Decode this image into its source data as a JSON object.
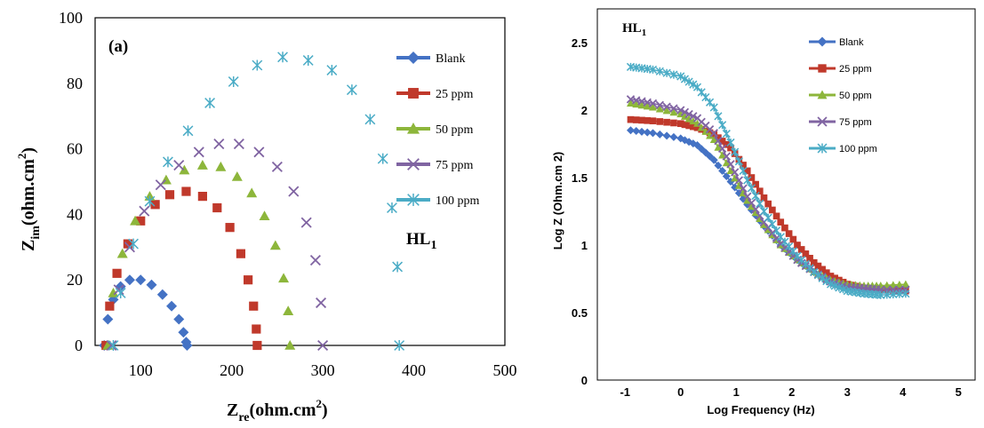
{
  "colors": {
    "blank": "#4472C4",
    "ppm25": "#C0392B",
    "ppm50": "#8DB63B",
    "ppm75": "#8064A2",
    "ppm100": "#4BACC6"
  },
  "chart_data": [
    {
      "type": "scatter",
      "panel_label": "(a)",
      "annotation": {
        "main": "HL",
        "sub": "1"
      },
      "xlabel": {
        "main": "Z",
        "sub": "re",
        "rest": "(ohm.cm",
        "sup": "2",
        "close": ")"
      },
      "ylabel": {
        "main": "Z",
        "sub": "im",
        "rest": "(ohm.cm",
        "sup": "2",
        "close": ")"
      },
      "xlim": [
        50,
        500
      ],
      "ylim": [
        0,
        100
      ],
      "xticks": [
        100,
        200,
        300,
        400,
        500
      ],
      "yticks": [
        0,
        20,
        40,
        60,
        80,
        100
      ],
      "grid": false,
      "legend_position": "right",
      "series": [
        {
          "name": "Blank",
          "marker": "diamond",
          "color": "blank",
          "x": [
            60,
            64,
            70,
            78,
            88,
            100,
            112,
            124,
            134,
            142,
            147,
            150,
            151
          ],
          "y": [
            0,
            8,
            14,
            18,
            20,
            20,
            18.5,
            15.5,
            12,
            8,
            4,
            1,
            0
          ]
        },
        {
          "name": "25 ppm",
          "marker": "square",
          "color": "ppm25",
          "x": [
            62,
            66,
            74,
            86,
            100,
            116,
            132,
            150,
            168,
            184,
            198,
            210,
            218,
            224,
            227,
            228
          ],
          "y": [
            0,
            12,
            22,
            31,
            38,
            43,
            46,
            47,
            45.5,
            42,
            36,
            28,
            20,
            12,
            5,
            0
          ]
        },
        {
          "name": "50 ppm",
          "marker": "triangle",
          "color": "ppm50",
          "x": [
            64,
            70,
            80,
            94,
            110,
            128,
            148,
            168,
            188,
            206,
            222,
            236,
            248,
            257,
            262,
            264
          ],
          "y": [
            0,
            16,
            28,
            38,
            45.5,
            50.5,
            53.5,
            55,
            54.5,
            51.5,
            46.5,
            39.5,
            30.5,
            20.5,
            10.5,
            0
          ]
        },
        {
          "name": "75 ppm",
          "marker": "x",
          "color": "ppm75",
          "x": [
            68,
            76,
            88,
            104,
            122,
            142,
            164,
            186,
            208,
            230,
            250,
            268,
            282,
            292,
            298,
            300
          ],
          "y": [
            0,
            17,
            30,
            41,
            49,
            55,
            59,
            61.5,
            61.5,
            59,
            54.5,
            47,
            37.5,
            26,
            13,
            0
          ]
        },
        {
          "name": "100 ppm",
          "marker": "star",
          "color": "ppm100",
          "x": [
            70,
            78,
            92,
            110,
            130,
            152,
            176,
            202,
            228,
            256,
            284,
            310,
            332,
            352,
            366,
            376,
            382,
            384
          ],
          "y": [
            0,
            16,
            31,
            44,
            56,
            65.5,
            74,
            80.5,
            85.5,
            88,
            87,
            84,
            78,
            69,
            57,
            42,
            24,
            0
          ]
        }
      ]
    },
    {
      "type": "line",
      "annotation": {
        "main": "HL",
        "sub": "1"
      },
      "xlabel": "Log Frequency (Hz)",
      "ylabel": "Log Z (Ohm.cm 2)",
      "xlim": [
        -1.5,
        5.3
      ],
      "ylim": [
        0,
        2.75
      ],
      "xticks": [
        -1,
        0,
        1,
        2,
        3,
        4,
        5
      ],
      "xtick_labels": [
        "-1",
        "0",
        "1",
        "2",
        "3",
        "4",
        "5"
      ],
      "yticks": [
        0,
        0.5,
        1,
        1.5,
        2,
        2.5
      ],
      "ytick_labels": [
        "0",
        "0.5",
        "1",
        "1.5",
        "2",
        "2.5"
      ],
      "grid": false,
      "legend_position": "top-right",
      "series": [
        {
          "name": "Blank",
          "marker": "diamond",
          "color": "blank",
          "x": [
            -0.9,
            -0.5,
            0,
            0.3,
            0.6,
            0.9,
            1.2,
            1.5,
            1.8,
            2.1,
            2.4,
            2.7,
            3,
            3.3,
            3.6,
            4.05
          ],
          "y": [
            1.85,
            1.83,
            1.79,
            1.74,
            1.63,
            1.47,
            1.3,
            1.14,
            1.0,
            0.89,
            0.8,
            0.73,
            0.7,
            0.69,
            0.69,
            0.69
          ]
        },
        {
          "name": "25 ppm",
          "marker": "square",
          "color": "ppm25",
          "x": [
            -0.9,
            -0.5,
            0,
            0.3,
            0.6,
            0.9,
            1.2,
            1.5,
            1.8,
            2.1,
            2.4,
            2.7,
            3,
            3.3,
            3.6,
            4.05
          ],
          "y": [
            1.93,
            1.92,
            1.9,
            1.87,
            1.82,
            1.72,
            1.55,
            1.35,
            1.17,
            1.0,
            0.87,
            0.77,
            0.71,
            0.68,
            0.67,
            0.66
          ]
        },
        {
          "name": "50 ppm",
          "marker": "triangle",
          "color": "ppm50",
          "x": [
            -0.9,
            -0.5,
            0,
            0.3,
            0.6,
            0.9,
            1.2,
            1.5,
            1.8,
            2.1,
            2.4,
            2.7,
            3,
            3.3,
            3.6,
            4.05
          ],
          "y": [
            2.05,
            2.02,
            1.97,
            1.9,
            1.78,
            1.55,
            1.33,
            1.15,
            1.0,
            0.89,
            0.8,
            0.74,
            0.71,
            0.7,
            0.7,
            0.71
          ]
        },
        {
          "name": "75 ppm",
          "marker": "x",
          "color": "ppm75",
          "x": [
            -0.9,
            -0.5,
            0,
            0.3,
            0.6,
            0.9,
            1.2,
            1.5,
            1.8,
            2.1,
            2.4,
            2.7,
            3,
            3.3,
            3.6,
            4.05
          ],
          "y": [
            2.08,
            2.05,
            2.0,
            1.94,
            1.83,
            1.6,
            1.36,
            1.17,
            1.01,
            0.89,
            0.8,
            0.73,
            0.69,
            0.68,
            0.67,
            0.67
          ]
        },
        {
          "name": "100 ppm",
          "marker": "star",
          "color": "ppm100",
          "x": [
            -0.9,
            -0.5,
            0,
            0.3,
            0.6,
            0.9,
            1.2,
            1.5,
            1.8,
            2.1,
            2.4,
            2.7,
            3,
            3.3,
            3.6,
            4.05
          ],
          "y": [
            2.32,
            2.3,
            2.25,
            2.17,
            2.02,
            1.76,
            1.48,
            1.25,
            1.06,
            0.92,
            0.8,
            0.71,
            0.66,
            0.64,
            0.63,
            0.64
          ]
        }
      ]
    }
  ]
}
